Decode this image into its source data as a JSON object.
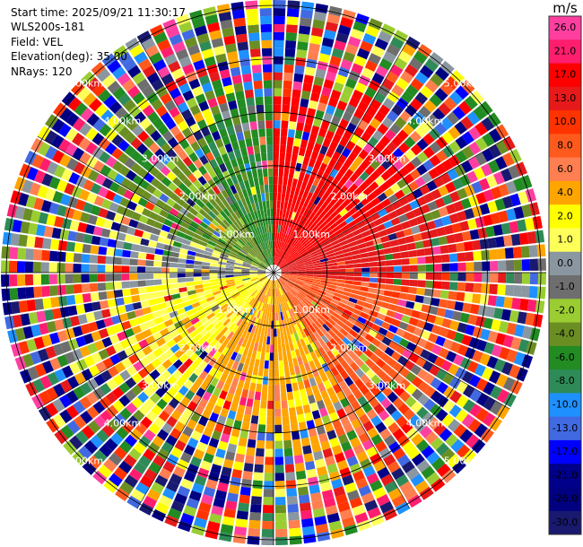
{
  "header": {
    "start_time": "Start time: 2025/09/21 11:30:17",
    "instrument": "WLS200s-181",
    "field": "Field: VEL",
    "elevation": "Elevation(deg): 35.00",
    "nrays": "NRays: 120"
  },
  "colorbar": {
    "unit": "m/s",
    "ticks": [
      "26.0",
      "21.0",
      "17.0",
      "13.0",
      "10.0",
      "8.0",
      "6.0",
      "4.0",
      "2.0",
      "1.0",
      "0.0",
      "-1.0",
      "-2.0",
      "-4.0",
      "-6.0",
      "-8.0",
      "-10.0",
      "-13.0",
      "-17.0",
      "-21.0",
      "-26.0",
      "-30.0"
    ],
    "colors": [
      "#ff3fa0",
      "#ff1e6e",
      "#ff0000",
      "#e61a1a",
      "#ff3300",
      "#ff5a1e",
      "#ff7f50",
      "#ffa500",
      "#ffff00",
      "#ffff5a",
      "#8a96a0",
      "#6e6e6e",
      "#9acd32",
      "#6b8e23",
      "#228b22",
      "#2e8b57",
      "#1e90ff",
      "#4169e1",
      "#0000ff",
      "#00008b",
      "#000080",
      "#191970"
    ]
  },
  "chart_data": {
    "type": "heatmap",
    "plot_kind": "polar PPI",
    "field": "VEL",
    "nrays": 120,
    "range_rings_km": [
      "1.00km",
      "2.00km",
      "3.00km",
      "4.00km",
      "5.00km"
    ],
    "ring_values_km": [
      1,
      2,
      3,
      4,
      5
    ],
    "max_range_km": 5.1,
    "sector_velocity_ms": [
      {
        "azimuth_from": 0,
        "azimuth_to": 60,
        "dominant_ms": 17.0
      },
      {
        "azimuth_from": 60,
        "azimuth_to": 95,
        "dominant_ms": 13.0
      },
      {
        "azimuth_from": 95,
        "azimuth_to": 150,
        "dominant_ms": 8.0
      },
      {
        "azimuth_from": 150,
        "azimuth_to": 215,
        "dominant_ms": 4.0
      },
      {
        "azimuth_from": 215,
        "azimuth_to": 265,
        "dominant_ms": 2.0
      },
      {
        "azimuth_from": 265,
        "azimuth_to": 290,
        "dominant_ms": 0.0
      },
      {
        "azimuth_from": 290,
        "azimuth_to": 330,
        "dominant_ms": -4.0
      },
      {
        "azimuth_from": 330,
        "azimuth_to": 360,
        "dominant_ms": -6.0
      }
    ]
  }
}
